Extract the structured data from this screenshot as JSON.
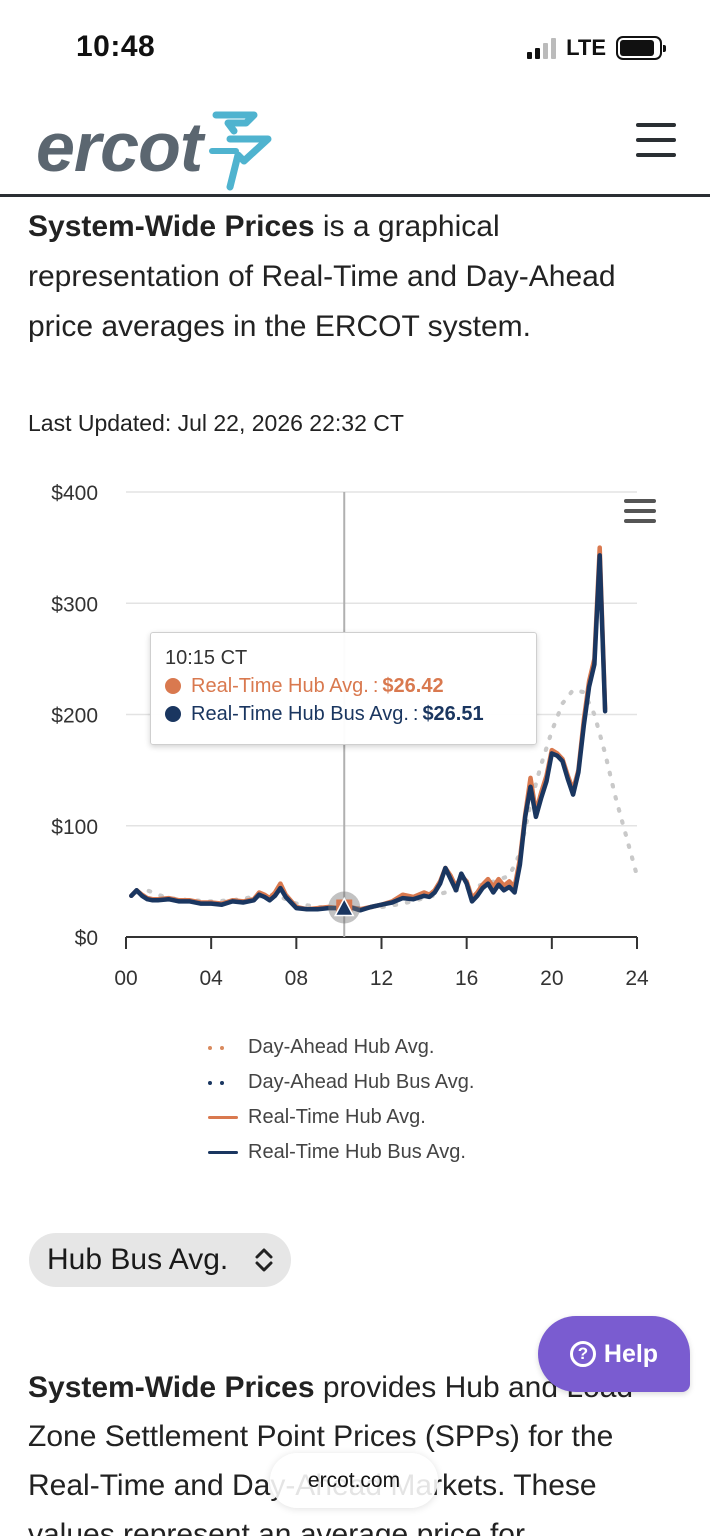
{
  "status_bar": {
    "time": "10:48",
    "network": "LTE"
  },
  "header": {
    "logo_text": "ercot",
    "menu_icon": "hamburger-menu-icon"
  },
  "intro": {
    "bold": "System-Wide Prices",
    "rest": " is a graphical representation of Real-Time and Day-Ahead price averages in the ERCOT system."
  },
  "last_updated": "Last Updated: Jul 22, 2026 22:32 CT",
  "chart_data": {
    "type": "line",
    "title": "",
    "xlabel": "",
    "ylabel": "",
    "x_ticks": [
      "00",
      "04",
      "08",
      "12",
      "16",
      "20",
      "24"
    ],
    "y_ticks": [
      "$0",
      "$100",
      "$200",
      "$300",
      "$400"
    ],
    "xlim": [
      0,
      24
    ],
    "ylim": [
      0,
      400
    ],
    "grid": true,
    "series": [
      {
        "name": "Day-Ahead Hub Avg.",
        "style": "dotted",
        "color": "#d98a5e",
        "x": [
          0.5,
          1,
          1.5,
          2,
          3,
          4,
          5,
          6,
          7,
          8,
          9,
          10,
          11,
          12,
          13,
          14,
          15,
          16,
          17,
          18,
          18.5,
          19,
          19.5,
          20,
          20.5,
          21,
          21.5,
          22,
          22.5,
          23,
          23.5,
          24
        ],
        "y": [
          40,
          42,
          38,
          35,
          33,
          32,
          33,
          36,
          38,
          30,
          27,
          26,
          26,
          27,
          30,
          35,
          40,
          44,
          48,
          55,
          75,
          120,
          155,
          185,
          210,
          222,
          220,
          200,
          165,
          125,
          90,
          55
        ]
      },
      {
        "name": "Day-Ahead Hub Bus Avg.",
        "style": "dotted",
        "color": "#1a3660",
        "x": [
          0.5,
          1,
          1.5,
          2,
          3,
          4,
          5,
          6,
          7,
          8,
          9,
          10,
          11,
          12,
          13,
          14,
          15,
          16,
          17,
          18,
          18.5,
          19,
          19.5,
          20,
          20.5,
          21,
          21.5,
          22,
          22.5,
          23,
          23.5,
          24
        ],
        "y": [
          40,
          42,
          38,
          35,
          33,
          32,
          33,
          36,
          38,
          30,
          27,
          26,
          26,
          27,
          30,
          35,
          40,
          44,
          48,
          55,
          75,
          120,
          155,
          185,
          210,
          222,
          220,
          200,
          165,
          125,
          90,
          55
        ]
      },
      {
        "name": "Real-Time Hub Avg.",
        "style": "solid",
        "color": "#d9794f",
        "x": [
          0.25,
          0.5,
          0.75,
          1,
          1.25,
          1.5,
          2,
          2.5,
          3,
          3.5,
          4,
          4.5,
          5,
          5.5,
          6,
          6.25,
          6.5,
          6.75,
          7,
          7.25,
          7.5,
          8,
          8.5,
          9,
          9.5,
          10,
          10.25,
          10.5,
          11,
          11.5,
          12,
          12.5,
          13,
          13.5,
          14,
          14.25,
          14.5,
          14.75,
          15,
          15.25,
          15.5,
          15.75,
          16,
          16.25,
          16.5,
          16.75,
          17,
          17.25,
          17.5,
          17.75,
          18,
          18.25,
          18.5,
          18.75,
          19,
          19.25,
          19.5,
          19.75,
          20,
          20.25,
          20.5,
          20.75,
          21,
          21.25,
          21.5,
          21.75,
          22,
          22.25,
          22.5
        ],
        "y": [
          37,
          42,
          38,
          35,
          34,
          34,
          35,
          33,
          33,
          31,
          31,
          30,
          33,
          32,
          34,
          40,
          38,
          35,
          40,
          48,
          38,
          27,
          25,
          26,
          27,
          26,
          26,
          27,
          25,
          27,
          29,
          32,
          38,
          36,
          40,
          38,
          42,
          50,
          62,
          55,
          45,
          55,
          50,
          35,
          40,
          47,
          52,
          45,
          52,
          46,
          50,
          45,
          70,
          110,
          143,
          112,
          130,
          145,
          168,
          165,
          160,
          145,
          132,
          150,
          195,
          230,
          250,
          350,
          205
        ]
      },
      {
        "name": "Real-Time Hub Bus Avg.",
        "style": "solid",
        "color": "#1a3660",
        "x": [
          0.25,
          0.5,
          0.75,
          1,
          1.25,
          1.5,
          2,
          2.5,
          3,
          3.5,
          4,
          4.5,
          5,
          5.5,
          6,
          6.25,
          6.5,
          6.75,
          7,
          7.25,
          7.5,
          8,
          8.5,
          9,
          9.5,
          10,
          10.25,
          10.5,
          11,
          11.5,
          12,
          12.5,
          13,
          13.5,
          14,
          14.25,
          14.5,
          14.75,
          15,
          15.25,
          15.5,
          15.75,
          16,
          16.25,
          16.5,
          16.75,
          17,
          17.25,
          17.5,
          17.75,
          18,
          18.25,
          18.5,
          18.75,
          19,
          19.25,
          19.5,
          19.75,
          20,
          20.25,
          20.5,
          20.75,
          21,
          21.25,
          21.5,
          21.75,
          22,
          22.25,
          22.5
        ],
        "y": [
          37,
          42,
          37,
          34,
          33,
          33,
          34,
          32,
          32,
          30,
          30,
          29,
          32,
          31,
          33,
          38,
          36,
          33,
          37,
          44,
          36,
          26,
          25,
          25,
          26,
          26,
          26,
          27,
          24,
          27,
          29,
          31,
          35,
          34,
          37,
          36,
          40,
          48,
          62,
          52,
          42,
          57,
          48,
          32,
          37,
          44,
          48,
          40,
          47,
          42,
          45,
          40,
          65,
          108,
          135,
          108,
          125,
          140,
          165,
          163,
          158,
          142,
          128,
          148,
          190,
          225,
          245,
          343,
          203
        ]
      }
    ],
    "hover": {
      "x": 10.25,
      "tooltip_time": "10:15 CT",
      "rows": [
        {
          "label": "Real-Time Hub Avg.",
          "value": "$26.42",
          "color": "#d9794f"
        },
        {
          "label": "Real-Time Hub Bus Avg.",
          "value": "$26.51",
          "color": "#1a3660"
        }
      ]
    },
    "legend_placement": "bottom"
  },
  "selector": {
    "value": "Hub Bus Avg."
  },
  "help_button": {
    "label": "Help"
  },
  "body_text": {
    "bold": "System-Wide Prices",
    "line1_rest": " provides Hub and Load",
    "line2": "Zone Settlement Point Prices (SPPs) for the",
    "line3": "Real-Time and Day-Ahead Markets.  These",
    "line4": "values represent an average price for"
  },
  "url_bar": {
    "domain": "ercot.com"
  },
  "colors": {
    "accent": "#7a5cd0",
    "navy": "#1a3660",
    "orange": "#d9794f",
    "logo_teal": "#4fb3cf",
    "logo_gray": "#5b6670"
  }
}
